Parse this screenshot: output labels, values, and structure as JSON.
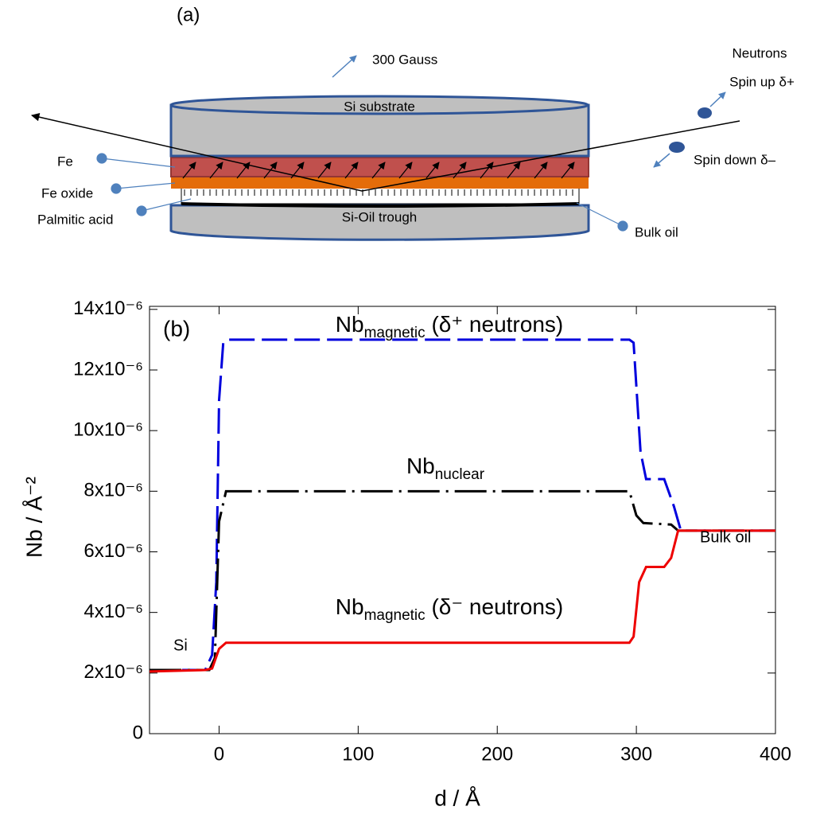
{
  "diagram": {
    "panel_label": "(a)",
    "field": "300 Gauss",
    "neutrons": "Neutrons",
    "spin_up": "Spin up  δ+",
    "spin_down": "Spin down  δ–",
    "layers": {
      "substrate": "Si substrate",
      "fe": "Fe",
      "fe_oxide": "Fe oxide",
      "acid": "Palmitic acid",
      "trough": "Si-Oil trough",
      "bulk_oil": "Bulk oil"
    }
  },
  "chart_data": {
    "type": "line",
    "xlabel": "d / Å",
    "ylabel": "Nb / Å⁻²",
    "xlim": [
      -50,
      400
    ],
    "xticks": [
      0,
      100,
      200,
      300,
      400
    ],
    "ylim": [
      0,
      1.41e-05
    ],
    "yticks": [
      0,
      {
        "value": 2e-06,
        "label": "2x10⁻⁶"
      },
      {
        "value": 4e-06,
        "label": "4x10⁻⁶"
      },
      {
        "value": 6e-06,
        "label": "6x10⁻⁶"
      },
      {
        "value": 8e-06,
        "label": "8x10⁻⁶"
      },
      {
        "value": 1e-05,
        "label": "10x10⁻⁶"
      },
      {
        "value": 1.2e-05,
        "label": "12x10⁻⁶"
      },
      {
        "value": 1.4e-05,
        "label": "14x10⁻⁶"
      }
    ],
    "series": [
      {
        "name": {
          "base": "Nb",
          "sub": "magnetic",
          "rest": " (δ⁺ neutrons)"
        },
        "color": "#0000dd",
        "dash": "32,9",
        "x": [
          -50,
          -10,
          -5,
          -2,
          0,
          3,
          7,
          295,
          298,
          303,
          307,
          320,
          327,
          332,
          400
        ],
        "values": [
          2.1e-06,
          2.1e-06,
          2.6e-06,
          5e-06,
          1.1e-05,
          1.29e-05,
          1.3e-05,
          1.3e-05,
          1.29e-05,
          9.3e-06,
          8.4e-06,
          8.4e-06,
          7.5e-06,
          6.7e-06,
          6.7e-06
        ]
      },
      {
        "name": {
          "base": "Nb",
          "sub": "nuclear",
          "rest": ""
        },
        "color": "#000000",
        "dash": "40,8,3,8",
        "x": [
          -50,
          -7,
          -3,
          0,
          5,
          295,
          300,
          305,
          325,
          330,
          400
        ],
        "values": [
          2.1e-06,
          2.1e-06,
          2.5e-06,
          7e-06,
          8e-06,
          8e-06,
          7.2e-06,
          6.95e-06,
          6.9e-06,
          6.7e-06,
          6.7e-06
        ]
      },
      {
        "name": {
          "base": "Nb",
          "sub": "magnetic",
          "rest": " (δ⁻ neutrons)"
        },
        "color": "#ee0000",
        "dash": "",
        "x": [
          -50,
          -10,
          -5,
          0,
          5,
          295,
          298,
          302,
          307,
          320,
          325,
          330,
          400
        ],
        "values": [
          2.05e-06,
          2.1e-06,
          2.15e-06,
          2.8e-06,
          3e-06,
          3e-06,
          3.2e-06,
          5e-06,
          5.5e-06,
          5.5e-06,
          5.8e-06,
          6.7e-06,
          6.7e-06
        ]
      }
    ],
    "annotations": [
      "(b)",
      "Si",
      "Bulk oil"
    ]
  }
}
